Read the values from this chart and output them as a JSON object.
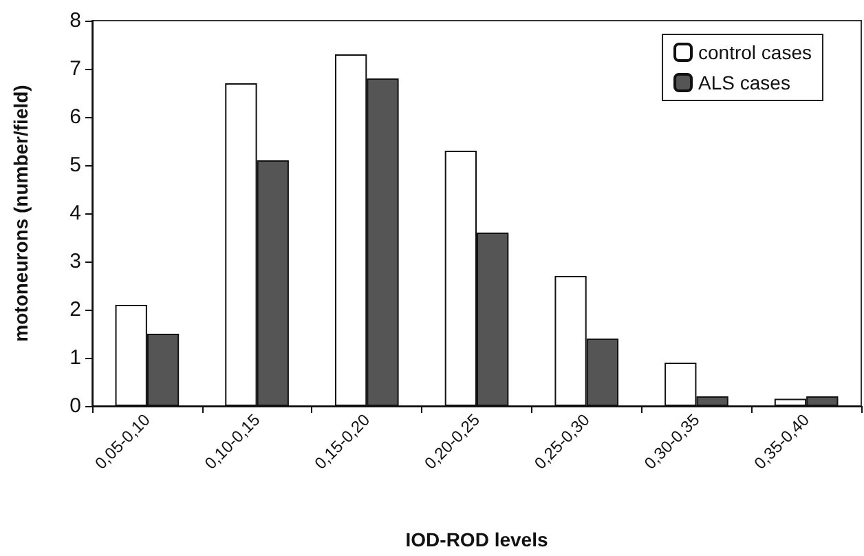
{
  "chart_data": {
    "type": "bar",
    "xlabel": "IOD-ROD levels",
    "ylabel": "motoneurons (number/field)",
    "categories": [
      "0,05-0,10",
      "0,10-0,15",
      "0,15-0,20",
      "0,20-0,25",
      "0,25-0,30",
      "0,30-0,35",
      "0,35-0,40"
    ],
    "series": [
      {
        "name": "control cases",
        "color": "#ffffff",
        "values": [
          2.1,
          6.7,
          7.3,
          5.3,
          2.7,
          0.9,
          0.15
        ]
      },
      {
        "name": "ALS cases",
        "color": "#555555",
        "values": [
          1.5,
          5.1,
          6.8,
          3.6,
          1.4,
          0.2,
          0.2
        ]
      }
    ],
    "ylim": [
      0,
      8
    ],
    "yticks": [
      0,
      1,
      2,
      3,
      4,
      5,
      6,
      7,
      8
    ],
    "grid": false,
    "legend": "top right"
  }
}
